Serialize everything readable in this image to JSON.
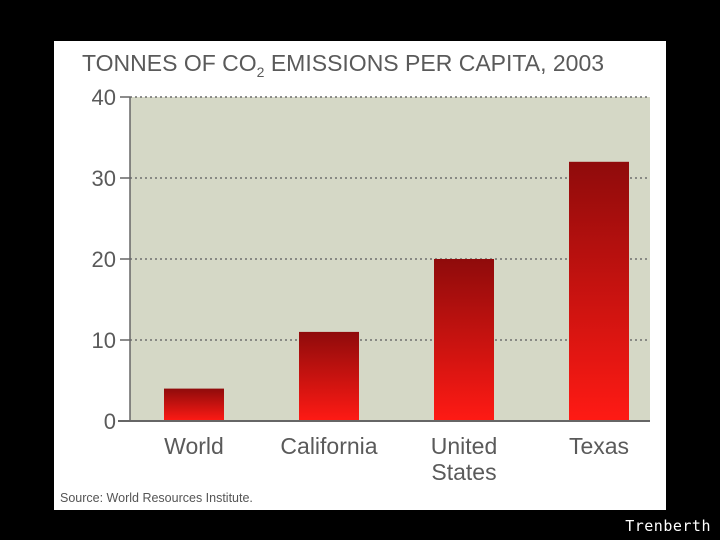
{
  "chart_data": {
    "type": "bar",
    "title_parts": [
      "TONNES OF CO",
      "2",
      " EMISSIONS PER CAPITA, 2003"
    ],
    "categories": [
      [
        "World"
      ],
      [
        "California"
      ],
      [
        "United",
        "States"
      ],
      [
        "Texas"
      ]
    ],
    "values": [
      4,
      11,
      20,
      32
    ],
    "ylim": [
      0,
      40
    ],
    "yticks": [
      0,
      10,
      20,
      30,
      40
    ],
    "xlabel": "",
    "ylabel": "",
    "grid": true,
    "source": "Source: World Resources Institute."
  },
  "colors": {
    "plot_bg": "#d5d8c6",
    "bar_top": "#8f0b0b",
    "bar_bottom": "#ff1a14",
    "grid": "#6f6f6f",
    "axis": "#666666"
  },
  "credit": "Trenberth"
}
